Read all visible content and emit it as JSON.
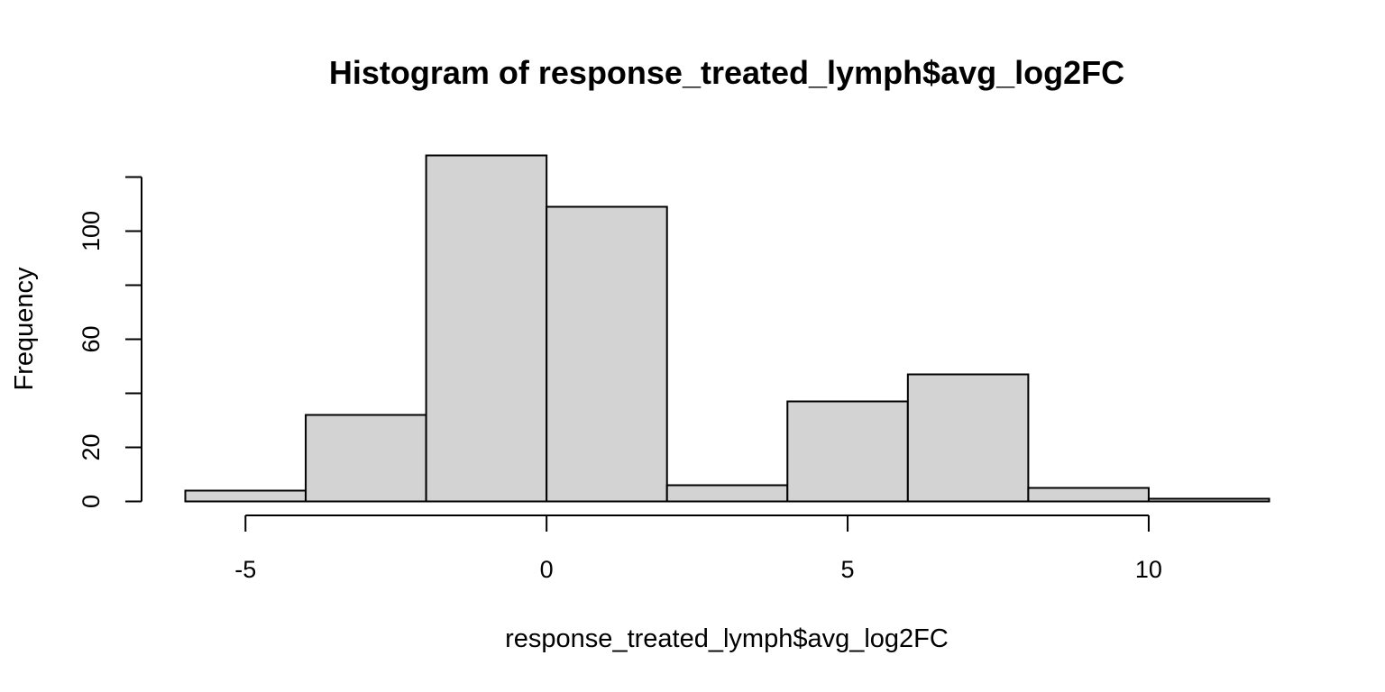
{
  "chart_data": {
    "type": "bar",
    "subtype": "histogram",
    "title": "Histogram of response_treated_lymph$avg_log2FC",
    "xlabel": "response_treated_lymph$avg_log2FC",
    "ylabel": "Frequency",
    "bin_edges": [
      -6,
      -4,
      -2,
      0,
      2,
      4,
      6,
      8,
      10,
      12
    ],
    "values": [
      4,
      32,
      128,
      109,
      6,
      37,
      47,
      5,
      1
    ],
    "xlim": [
      -6,
      12
    ],
    "ylim": [
      0,
      128
    ],
    "x_ticks": [
      -5,
      0,
      5,
      10
    ],
    "x_tick_labels": [
      "-5",
      "0",
      "5",
      "10"
    ],
    "y_ticks": [
      0,
      20,
      40,
      60,
      80,
      100,
      120
    ],
    "y_tick_labels": [
      "0",
      "20",
      "",
      "60",
      "",
      "100",
      ""
    ],
    "grid": false,
    "legend": "none",
    "colors": {
      "bar_fill": "#d3d3d3",
      "bar_stroke": "#000000",
      "axis": "#000000",
      "text": "#000000",
      "background": "#ffffff"
    }
  }
}
